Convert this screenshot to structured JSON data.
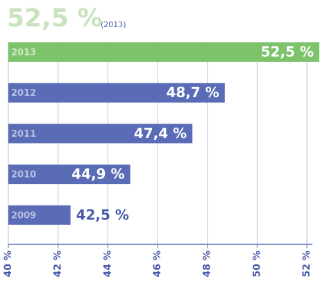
{
  "chart_data": {
    "type": "bar",
    "orientation": "horizontal",
    "title": "52,5 %",
    "subtitle": "(2013)",
    "categories": [
      "2013",
      "2012",
      "2011",
      "2010",
      "2009"
    ],
    "values": [
      52.5,
      48.7,
      47.4,
      44.9,
      42.5
    ],
    "value_labels": [
      "52,5 %",
      "48,7 %",
      "47,4 %",
      "44,9 %",
      "42,5 %"
    ],
    "colors": [
      "#7cc36c",
      "#5a6cb6",
      "#5a6cb6",
      "#5a6cb6",
      "#5a6cb6"
    ],
    "xlim": [
      40,
      52.5
    ],
    "xticks": [
      {
        "value": 40,
        "label": "40 %"
      },
      {
        "value": 42,
        "label": "42 %"
      },
      {
        "value": 44,
        "label": "44 %"
      },
      {
        "value": 46,
        "label": "46 %"
      },
      {
        "value": 48,
        "label": "48 %"
      },
      {
        "value": 50,
        "label": "50 %"
      },
      {
        "value": 52,
        "label": "52 %"
      }
    ],
    "grid": true
  }
}
